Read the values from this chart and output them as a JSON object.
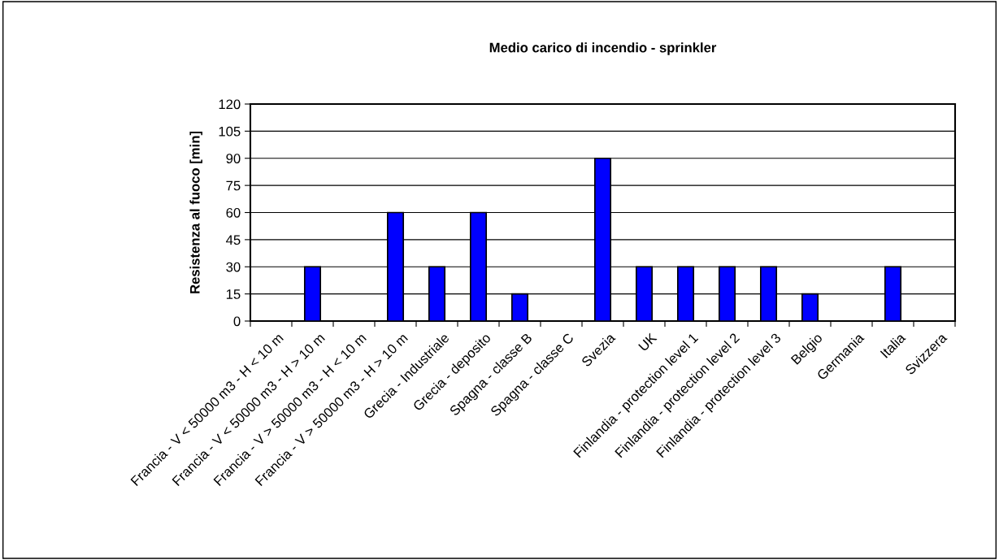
{
  "chart_data": {
    "type": "bar",
    "title": "Medio carico di incendio - sprinkler",
    "ylabel": "Resistenza al fuoco [min]",
    "categories": [
      "Francia - V < 50000 m3 - H < 10 m",
      "Francia - V < 50000 m3 - H > 10 m",
      "Francia - V > 50000 m3 - H < 10 m",
      "Francia - V > 50000 m3 - H > 10 m",
      "Grecia - Industriale",
      "Grecia - deposito",
      "Spagna - classe B",
      "Spagna - classe C",
      "Svezia",
      "UK",
      "Finlandia - protection level 1",
      "Finlandia - protection level 2",
      "Finlandia - protection level 3",
      "Belgio",
      "Germania",
      "Italia",
      "Svizzera"
    ],
    "values": [
      0,
      30,
      0,
      60,
      30,
      60,
      15,
      0,
      90,
      30,
      30,
      30,
      30,
      15,
      0,
      30,
      0
    ],
    "color": "#0000ff",
    "ylim": [
      0,
      120
    ],
    "yticks": [
      0,
      15,
      30,
      45,
      60,
      75,
      90,
      105,
      120
    ],
    "grid": "y",
    "legend": false
  }
}
